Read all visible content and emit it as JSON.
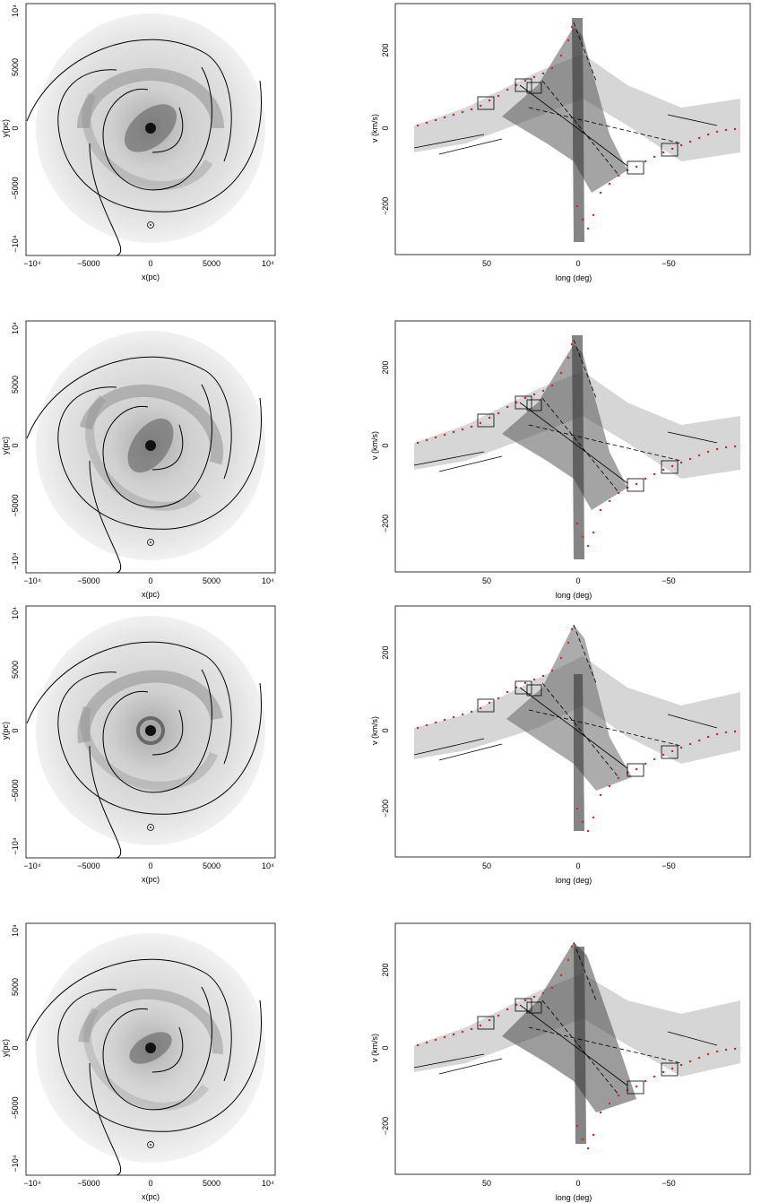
{
  "figure": {
    "rows": [
      {
        "row_id": "row-1",
        "spatial": {
          "xlabel": "x(pc)",
          "ylabel": "y(pc)",
          "xticks": [
            "−10⁴",
            "−5000",
            "0",
            "5000",
            "10⁴"
          ],
          "yticks": [
            "10⁴",
            "5000",
            "0",
            "−5000",
            "−10⁴"
          ]
        },
        "lv": {
          "xlabel": "long (deg)",
          "ylabel": "v (km/s)",
          "xticks": [
            "50",
            "0",
            "−50"
          ],
          "yticks": [
            "200",
            "0",
            "−200"
          ]
        }
      },
      {
        "row_id": "row-2",
        "spatial": {
          "xlabel": "x(pc)",
          "ylabel": "y(pc)",
          "xticks": [
            "−10⁴",
            "−5000",
            "0",
            "5000",
            "10⁴"
          ],
          "yticks": [
            "10⁴",
            "5000",
            "0",
            "−5000",
            "−10⁴"
          ]
        },
        "lv": {
          "xlabel": "long (deg)",
          "ylabel": "v (km/s)",
          "xticks": [
            "50",
            "0",
            "−50"
          ],
          "yticks": [
            "200",
            "0",
            "−200"
          ]
        }
      },
      {
        "row_id": "row-3",
        "spatial": {
          "xlabel": "x(pc)",
          "ylabel": "y(pc)",
          "xticks": [
            "−10⁴",
            "−5000",
            "0",
            "5000",
            "10⁴"
          ],
          "yticks": [
            "10⁴",
            "5000",
            "0",
            "−5000",
            "−10⁴"
          ]
        },
        "lv": {
          "xlabel": "long (deg)",
          "ylabel": "v (km/s)",
          "xticks": [
            "50",
            "0",
            "−50"
          ],
          "yticks": [
            "200",
            "0",
            "−200"
          ]
        }
      },
      {
        "row_id": "row-4",
        "spatial": {
          "xlabel": "x(pc)",
          "ylabel": "y(pc)",
          "xticks": [
            "−10⁴",
            "−5000",
            "0",
            "5000",
            "10⁴"
          ],
          "yticks": [
            "10⁴",
            "5000",
            "0",
            "−5000",
            "−10⁴"
          ]
        },
        "lv": {
          "xlabel": "long (deg)",
          "ylabel": "v (km/s)",
          "xticks": [
            "50",
            "0",
            "−50"
          ],
          "yticks": [
            "200",
            "0",
            "−200"
          ]
        }
      }
    ]
  },
  "colors": {
    "observed_points": "#e02020",
    "model_dark": "#2a2a2a",
    "model_light": "#cfcfcf"
  }
}
